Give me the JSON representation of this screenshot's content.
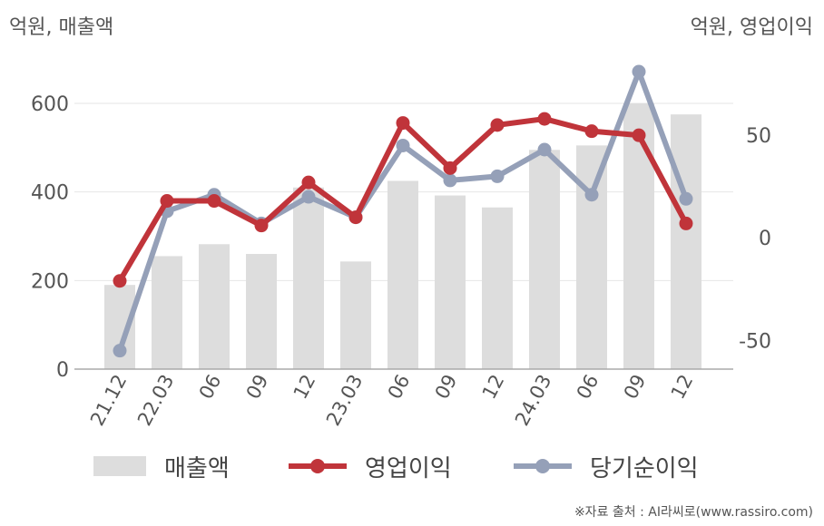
{
  "chart_data": {
    "type": "bar+line",
    "left_unit": "억원, 매출액",
    "right_unit": "억원, 영업이익",
    "categories": [
      "21.12",
      "22.03",
      "06",
      "09",
      "12",
      "23.03",
      "06",
      "09",
      "12",
      "24.03",
      "06",
      "09",
      "12"
    ],
    "left_axis": {
      "ticks": [
        0,
        200,
        400,
        600
      ],
      "range": [
        0,
        690
      ]
    },
    "right_axis": {
      "ticks": [
        -50,
        0,
        50
      ],
      "range": [
        -64,
        85
      ]
    },
    "series": [
      {
        "name": "매출액",
        "kind": "bar",
        "axis": "left",
        "color": "#dddddd",
        "values": [
          190,
          255,
          282,
          260,
          410,
          243,
          425,
          392,
          365,
          495,
          505,
          600,
          575
        ]
      },
      {
        "name": "영업이익",
        "kind": "line",
        "axis": "right",
        "color": "#c0343a",
        "values": [
          -21,
          18,
          18,
          6,
          27,
          10,
          56,
          34,
          55,
          58,
          52,
          50,
          7
        ]
      },
      {
        "name": "당기순이익",
        "kind": "line",
        "axis": "right",
        "color": "#95a0b8",
        "values": [
          -55,
          13,
          21,
          7,
          20,
          10,
          45,
          28,
          30,
          43,
          21,
          81,
          19
        ]
      }
    ],
    "grid": true,
    "legend_position": "bottom"
  },
  "source": "※자료 출처 : AI라씨로(www.rassiro.com)"
}
